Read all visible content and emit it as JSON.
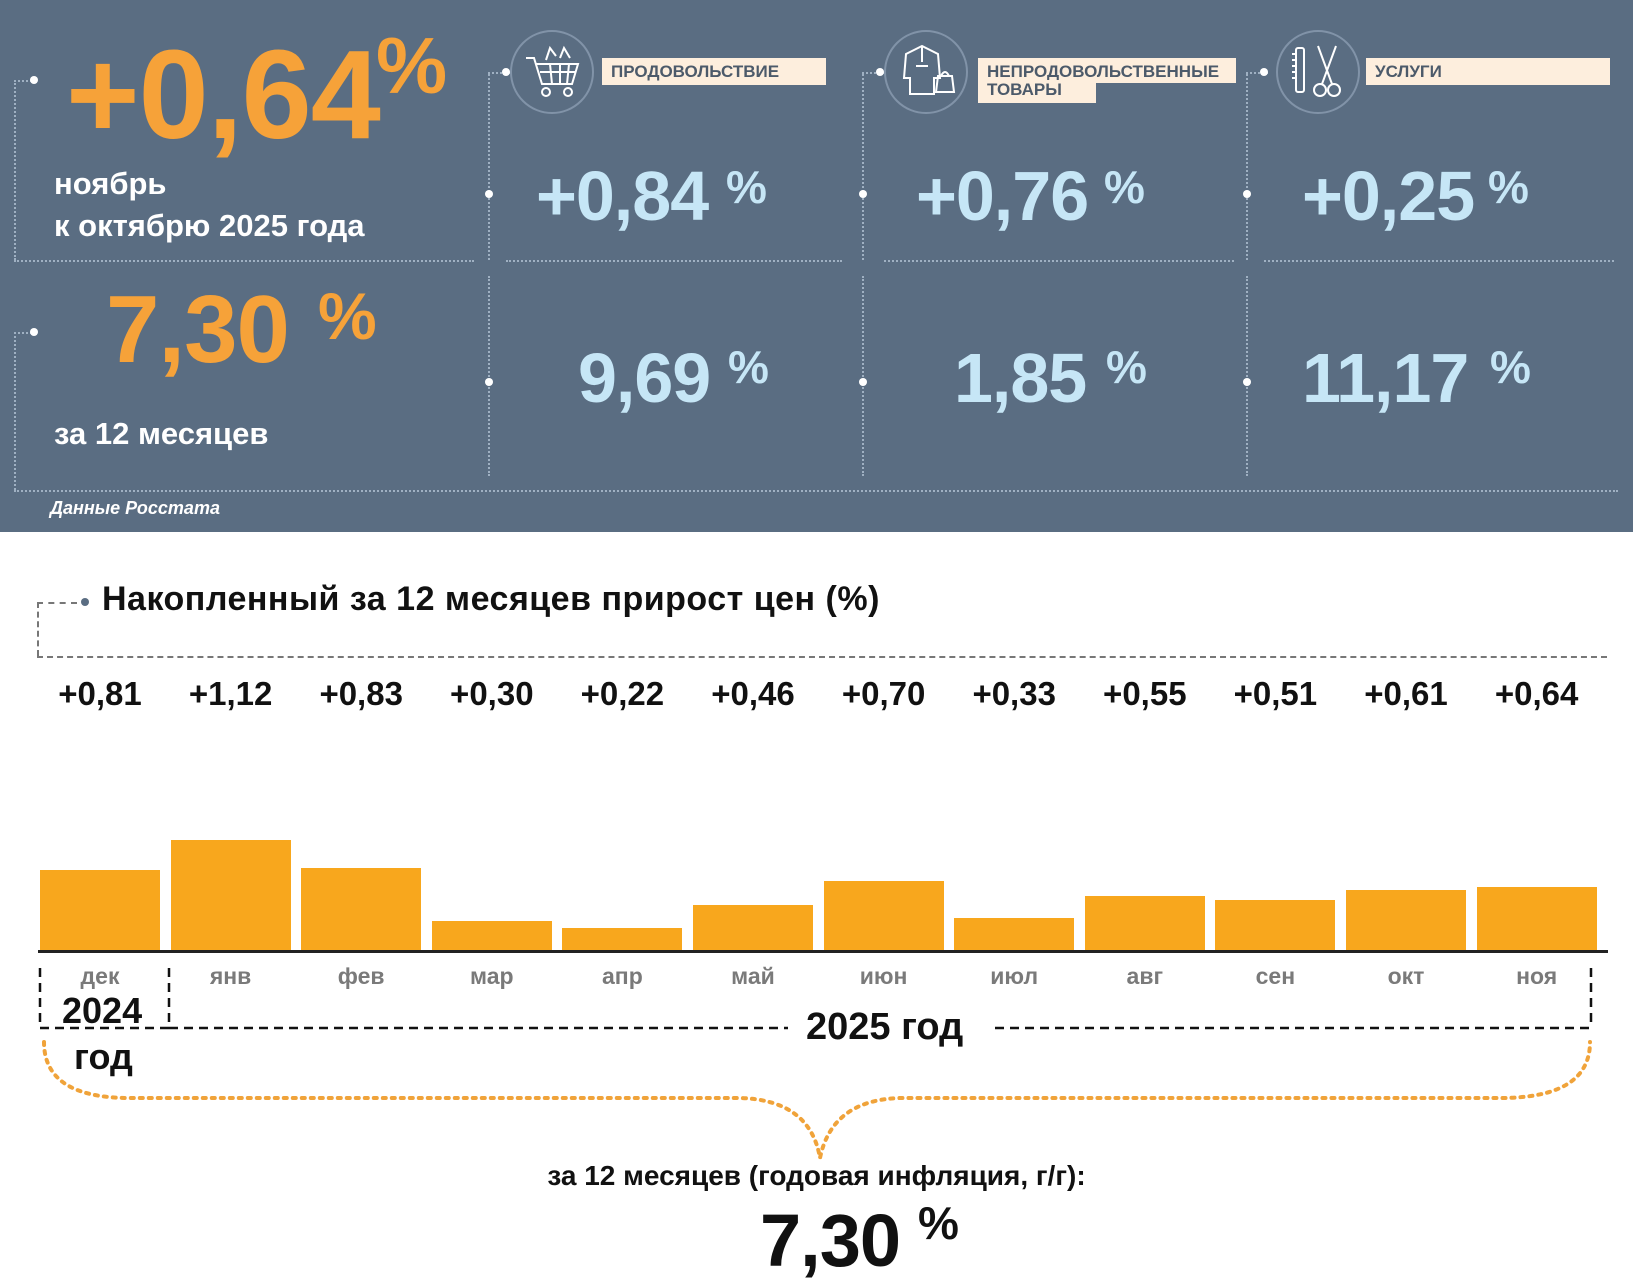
{
  "header": {
    "monthly": {
      "value": "+0,64",
      "unit": "%",
      "line1": "ноябрь",
      "line2": "к октябрю 2025 года"
    },
    "annual": {
      "value": "7,30",
      "unit": "%",
      "label": "за 12 месяцев"
    },
    "categories": [
      {
        "label": "ПРОДОВОЛЬСТВИЕ",
        "label_line2": "",
        "icon": "shopping-cart-icon",
        "monthly": "+0,84",
        "annual": "9,69",
        "unit": "%"
      },
      {
        "label": "НЕПРОДОВОЛЬСТВЕННЫЕ",
        "label_line2": "ТОВАРЫ",
        "icon": "clothing-icon",
        "monthly": "+0,76",
        "annual": "1,85",
        "unit": "%"
      },
      {
        "label": "УСЛУГИ",
        "label_line2": "",
        "icon": "scissors-comb-icon",
        "monthly": "+0,25",
        "annual": "11,17",
        "unit": "%"
      }
    ],
    "source": "Данные Росстата"
  },
  "colors": {
    "panel_bg": "#5a6d82",
    "accent_orange": "#f6a239",
    "value_blue": "#c6e6f6",
    "bar_orange": "#f8a71d",
    "label_bg": "#fdeedd"
  },
  "chart_data": {
    "type": "bar",
    "title": "Накопленный за 12 месяцев прирост цен (%)",
    "categories": [
      "дек",
      "янв",
      "фев",
      "мар",
      "апр",
      "май",
      "июн",
      "июл",
      "авг",
      "сен",
      "окт",
      "ноя"
    ],
    "values": [
      0.81,
      1.12,
      0.83,
      0.3,
      0.22,
      0.46,
      0.7,
      0.33,
      0.55,
      0.51,
      0.61,
      0.64
    ],
    "value_labels": [
      "+0,81",
      "+1,12",
      "+0,83",
      "+0,30",
      "+0,22",
      "+0,46",
      "+0,70",
      "+0,33",
      "+0,55",
      "+0,51",
      "+0,61",
      "+0,64"
    ],
    "year_2024": "2024",
    "year_2024_word": "год",
    "year_2025": "2025 год",
    "summary_label": "за 12 месяцев (годовая инфляция, г/г):",
    "summary_value": "7,30",
    "summary_unit": "%",
    "ylim": [
      0,
      1.2
    ],
    "grid": false,
    "legend": "none"
  }
}
